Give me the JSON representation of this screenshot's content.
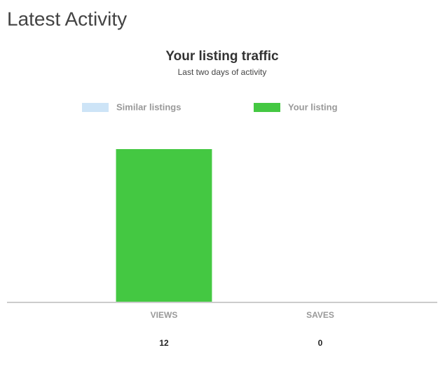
{
  "page_title": "Latest Activity",
  "chart_data": {
    "type": "bar",
    "title": "Your listing traffic",
    "subtitle": "Last two days of activity",
    "categories": [
      "VIEWS",
      "SAVES"
    ],
    "series": [
      {
        "name": "Similar listings",
        "color": "#cde4f7",
        "values": [
          null,
          null
        ]
      },
      {
        "name": "Your listing",
        "color": "#44c842",
        "values": [
          12,
          0
        ]
      }
    ],
    "ylim": [
      0,
      12
    ],
    "legend": "top"
  }
}
